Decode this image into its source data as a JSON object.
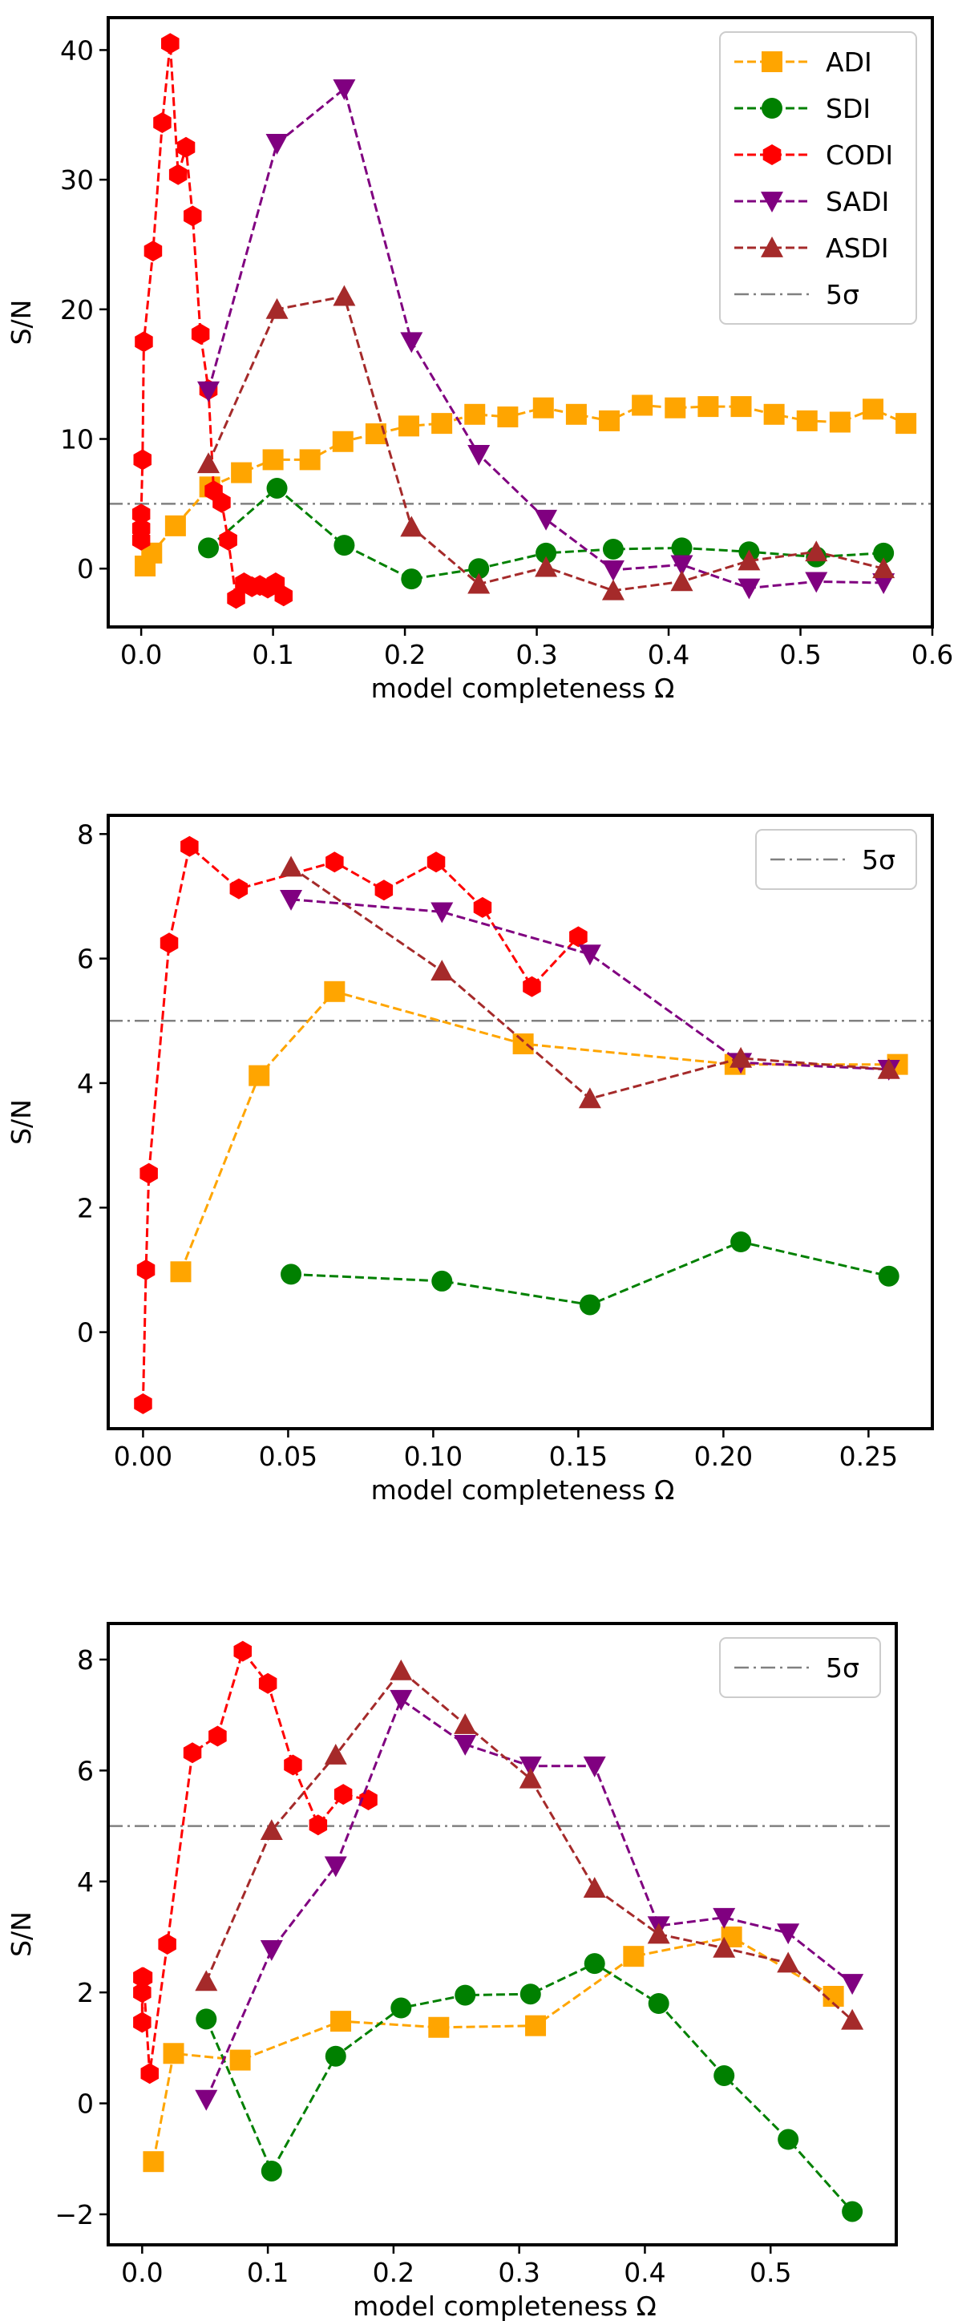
{
  "chart_data": [
    {
      "type": "line",
      "xlabel": "model completeness Ω",
      "ylabel": "S/N",
      "xlim": [
        -0.025,
        0.6
      ],
      "ylim": [
        -4.5,
        42.5
      ],
      "xticks": [
        0.0,
        0.1,
        0.2,
        0.3,
        0.4,
        0.5,
        0.6
      ],
      "xtick_labels": [
        "0.0",
        "0.1",
        "0.2",
        "0.3",
        "0.4",
        "0.5",
        "0.6"
      ],
      "yticks": [
        0,
        10,
        20,
        30,
        40
      ],
      "ytick_labels": [
        "0",
        "10",
        "20",
        "30",
        "40"
      ],
      "hline": {
        "y": 5,
        "label": "5σ",
        "color": "#808080"
      },
      "legend": {
        "position": "top-right",
        "entries": [
          "ADI",
          "SDI",
          "CODI",
          "SADI",
          "ASDI",
          "5σ"
        ]
      },
      "series": [
        {
          "name": "ADI",
          "color": "#ffa500",
          "marker": "square",
          "x": [
            0.003,
            0.008,
            0.026,
            0.052,
            0.076,
            0.1,
            0.128,
            0.153,
            0.178,
            0.203,
            0.228,
            0.253,
            0.278,
            0.305,
            0.33,
            0.355,
            0.38,
            0.405,
            0.43,
            0.455,
            0.48,
            0.505,
            0.53,
            0.555,
            0.58
          ],
          "y": [
            0.2,
            1.2,
            3.3,
            6.3,
            7.4,
            8.4,
            8.4,
            9.8,
            10.4,
            11.0,
            11.2,
            11.9,
            11.7,
            12.4,
            11.9,
            11.4,
            12.6,
            12.4,
            12.5,
            12.5,
            11.9,
            11.4,
            11.3,
            12.3,
            11.2
          ]
        },
        {
          "name": "SDI",
          "color": "#008000",
          "marker": "circle",
          "x": [
            0.051,
            0.103,
            0.154,
            0.205,
            0.256,
            0.307,
            0.358,
            0.41,
            0.461,
            0.512,
            0.563
          ],
          "y": [
            1.6,
            6.2,
            1.8,
            -0.8,
            0.0,
            1.2,
            1.5,
            1.6,
            1.3,
            0.9,
            1.2
          ]
        },
        {
          "name": "CODI",
          "color": "#ff0000",
          "marker": "hexagon",
          "x": [
            0.0,
            0.0,
            0.0,
            0.001,
            0.002,
            0.009,
            0.016,
            0.022,
            0.028,
            0.034,
            0.039,
            0.045,
            0.051,
            0.055,
            0.061,
            0.066,
            0.072,
            0.078,
            0.084,
            0.09,
            0.096,
            0.102,
            0.108
          ],
          "y": [
            2.2,
            3.1,
            4.2,
            8.4,
            17.5,
            24.5,
            34.4,
            40.5,
            30.4,
            32.5,
            27.2,
            18.1,
            13.8,
            6.0,
            5.1,
            2.2,
            -2.3,
            -1.1,
            -1.4,
            -1.3,
            -1.5,
            -1.1,
            -2.1
          ]
        },
        {
          "name": "SADI",
          "color": "#800080",
          "marker": "triangle-down",
          "x": [
            0.051,
            0.103,
            0.154,
            0.205,
            0.256,
            0.307,
            0.358,
            0.41,
            0.461,
            0.512,
            0.563
          ],
          "y": [
            13.7,
            32.8,
            37.0,
            17.5,
            8.8,
            3.8,
            -0.1,
            0.3,
            -1.5,
            -1.0,
            -1.1
          ]
        },
        {
          "name": "ASDI",
          "color": "#a52a2a",
          "marker": "triangle-up",
          "x": [
            0.051,
            0.103,
            0.154,
            0.205,
            0.256,
            0.307,
            0.358,
            0.41,
            0.461,
            0.512,
            0.563
          ],
          "y": [
            8.1,
            20.0,
            21.0,
            3.2,
            -1.2,
            0.1,
            -1.7,
            -1.0,
            0.6,
            1.3,
            0.0
          ]
        }
      ]
    },
    {
      "type": "line",
      "xlabel": "model completeness Ω",
      "ylabel": "S/N",
      "xlim": [
        -0.012,
        0.272
      ],
      "ylim": [
        -1.55,
        8.3
      ],
      "xticks": [
        0.0,
        0.05,
        0.1,
        0.15,
        0.2,
        0.25
      ],
      "xtick_labels": [
        "0.00",
        "0.05",
        "0.10",
        "0.15",
        "0.20",
        "0.25"
      ],
      "yticks": [
        0,
        2,
        4,
        6,
        8
      ],
      "ytick_labels": [
        "0",
        "2",
        "4",
        "6",
        "8"
      ],
      "hline": {
        "y": 5,
        "label": "5σ",
        "color": "#808080"
      },
      "legend": {
        "position": "top-right",
        "entries": [
          "5σ"
        ]
      },
      "series": [
        {
          "name": "ADI",
          "color": "#ffa500",
          "marker": "square",
          "x": [
            0.013,
            0.04,
            0.066,
            0.131,
            0.204,
            0.26
          ],
          "y": [
            0.97,
            4.12,
            5.47,
            4.63,
            4.3,
            4.3
          ]
        },
        {
          "name": "SDI",
          "color": "#008000",
          "marker": "circle",
          "x": [
            0.051,
            0.103,
            0.154,
            0.206,
            0.257
          ],
          "y": [
            0.93,
            0.82,
            0.44,
            1.45,
            0.9
          ]
        },
        {
          "name": "CODI",
          "color": "#ff0000",
          "marker": "hexagon",
          "x": [
            0.0,
            0.001,
            0.002,
            0.009,
            0.016,
            0.033,
            0.066,
            0.083,
            0.101,
            0.117,
            0.134,
            0.15
          ],
          "y": [
            -1.15,
            1.0,
            2.55,
            6.25,
            7.8,
            7.12,
            7.55,
            7.1,
            7.55,
            6.82,
            5.55,
            6.35
          ]
        },
        {
          "name": "SADI",
          "color": "#800080",
          "marker": "triangle-down",
          "x": [
            0.051,
            0.103,
            0.154,
            0.206,
            0.257
          ],
          "y": [
            6.95,
            6.75,
            6.07,
            4.33,
            4.22
          ]
        },
        {
          "name": "ASDI",
          "color": "#a52a2a",
          "marker": "triangle-up",
          "x": [
            0.051,
            0.103,
            0.154,
            0.206,
            0.257
          ],
          "y": [
            7.47,
            5.8,
            3.75,
            4.4,
            4.22
          ]
        }
      ]
    },
    {
      "type": "line",
      "xlabel": "model completeness Ω",
      "ylabel": "S/N",
      "xlim": [
        -0.027,
        0.6
      ],
      "ylim": [
        -2.55,
        8.65
      ],
      "xticks": [
        0.0,
        0.1,
        0.2,
        0.3,
        0.4,
        0.5
      ],
      "xtick_labels": [
        "0.0",
        "0.1",
        "0.2",
        "0.3",
        "0.4",
        "0.5"
      ],
      "yticks": [
        -2,
        0,
        2,
        4,
        6,
        8
      ],
      "ytick_labels": [
        "−2",
        "0",
        "2",
        "4",
        "6",
        "8"
      ],
      "hline": {
        "y": 5,
        "label": "5σ",
        "color": "#808080"
      },
      "legend": {
        "position": "top-right",
        "entries": [
          "5σ"
        ]
      },
      "series": [
        {
          "name": "ADI",
          "color": "#ffa500",
          "marker": "square",
          "x": [
            0.009,
            0.025,
            0.078,
            0.158,
            0.236,
            0.313,
            0.391,
            0.469,
            0.55
          ],
          "y": [
            -1.05,
            0.9,
            0.78,
            1.48,
            1.37,
            1.4,
            2.65,
            3.0,
            1.93
          ]
        },
        {
          "name": "SDI",
          "color": "#008000",
          "marker": "circle",
          "x": [
            0.051,
            0.103,
            0.154,
            0.206,
            0.257,
            0.309,
            0.36,
            0.411,
            0.463,
            0.514,
            0.565
          ],
          "y": [
            1.52,
            -1.22,
            0.85,
            1.72,
            1.95,
            1.97,
            2.52,
            1.8,
            0.5,
            -0.65,
            -1.95
          ]
        },
        {
          "name": "CODI",
          "color": "#ff0000",
          "marker": "hexagon",
          "x": [
            0.0,
            0.0,
            0.0,
            0.001,
            0.006,
            0.02,
            0.04,
            0.06,
            0.08,
            0.1,
            0.12,
            0.14,
            0.16,
            0.18
          ],
          "y": [
            2.27,
            2.0,
            1.46,
            2.27,
            0.54,
            2.87,
            6.32,
            6.62,
            8.15,
            7.57,
            6.1,
            5.02,
            5.57,
            5.47
          ]
        },
        {
          "name": "SADI",
          "color": "#800080",
          "marker": "triangle-down",
          "x": [
            0.051,
            0.103,
            0.154,
            0.206,
            0.257,
            0.309,
            0.36,
            0.411,
            0.463,
            0.514,
            0.565
          ],
          "y": [
            0.07,
            2.77,
            4.28,
            7.28,
            6.47,
            6.08,
            6.08,
            3.2,
            3.35,
            3.07,
            2.16
          ]
        },
        {
          "name": "ASDI",
          "color": "#a52a2a",
          "marker": "triangle-up",
          "x": [
            0.051,
            0.103,
            0.154,
            0.206,
            0.257,
            0.309,
            0.36,
            0.411,
            0.463,
            0.514,
            0.565
          ],
          "y": [
            2.2,
            4.92,
            6.28,
            7.8,
            6.83,
            5.85,
            3.88,
            3.05,
            2.8,
            2.53,
            1.5
          ]
        }
      ]
    }
  ]
}
